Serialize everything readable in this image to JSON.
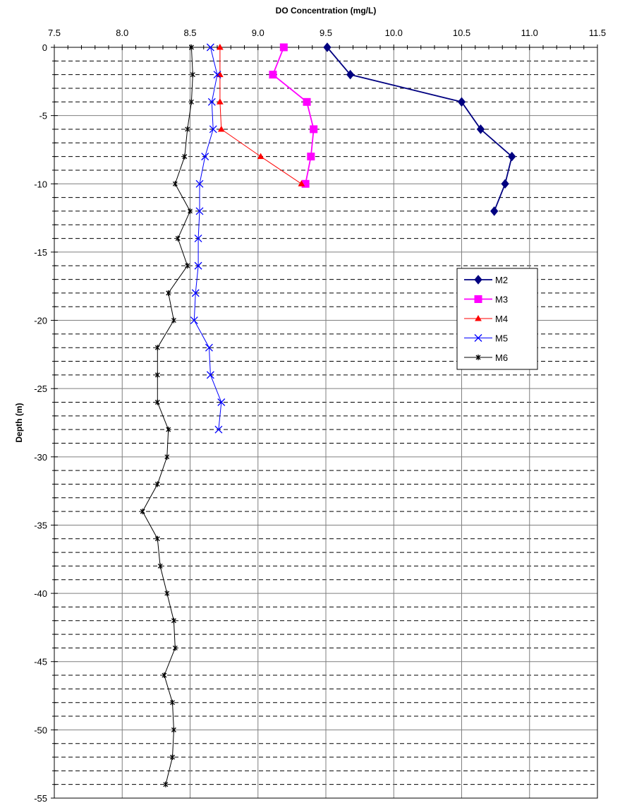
{
  "chart_data": {
    "type": "line",
    "title": "",
    "xlabel": "DO Concentration (mg/L)",
    "ylabel": "Depth (m)",
    "xlim": [
      7.5,
      11.5
    ],
    "ylim": [
      -55,
      0
    ],
    "x_ticks": [
      "7.5",
      "8.0",
      "8.5",
      "9.0",
      "9.5",
      "10.0",
      "10.5",
      "11.0",
      "11.5"
    ],
    "y_ticks": [
      "0",
      "-5",
      "-10",
      "-15",
      "-20",
      "-25",
      "-30",
      "-35",
      "-40",
      "-45",
      "-50",
      "-55"
    ],
    "x_axis_position": "top",
    "grid": "solid major gridlines every 5 m and 0.5 mg/L; dashed minor gridlines every 1 m",
    "legend_position": "right",
    "series": [
      {
        "name": "M2",
        "color": "#000080",
        "marker": "diamond",
        "points": [
          [
            9.51,
            0
          ],
          [
            9.68,
            -2
          ],
          [
            10.5,
            -4
          ],
          [
            10.64,
            -6
          ],
          [
            10.87,
            -8
          ],
          [
            10.82,
            -10
          ],
          [
            10.74,
            -12
          ]
        ]
      },
      {
        "name": "M3",
        "color": "#ff00ff",
        "marker": "square",
        "points": [
          [
            9.19,
            0
          ],
          [
            9.11,
            -2
          ],
          [
            9.36,
            -4
          ],
          [
            9.41,
            -6
          ],
          [
            9.39,
            -8
          ],
          [
            9.35,
            -10
          ]
        ]
      },
      {
        "name": "M4",
        "color": "#ff0000",
        "marker": "triangle",
        "points": [
          [
            8.72,
            0
          ],
          [
            8.72,
            -2
          ],
          [
            8.72,
            -4
          ],
          [
            8.73,
            -6
          ],
          [
            9.02,
            -8
          ],
          [
            9.32,
            -10
          ]
        ]
      },
      {
        "name": "M5",
        "color": "#0000ff",
        "marker": "x",
        "points": [
          [
            8.65,
            0
          ],
          [
            8.7,
            -2
          ],
          [
            8.66,
            -4
          ],
          [
            8.67,
            -6
          ],
          [
            8.61,
            -8
          ],
          [
            8.57,
            -10
          ],
          [
            8.57,
            -12
          ],
          [
            8.56,
            -14
          ],
          [
            8.56,
            -16
          ],
          [
            8.54,
            -18
          ],
          [
            8.53,
            -20
          ],
          [
            8.64,
            -22
          ],
          [
            8.65,
            -24
          ],
          [
            8.73,
            -26
          ],
          [
            8.71,
            -28
          ]
        ]
      },
      {
        "name": "M6",
        "color": "#000000",
        "marker": "star",
        "points": [
          [
            8.51,
            0
          ],
          [
            8.52,
            -2
          ],
          [
            8.51,
            -4
          ],
          [
            8.48,
            -6
          ],
          [
            8.46,
            -8
          ],
          [
            8.39,
            -10
          ],
          [
            8.5,
            -12
          ],
          [
            8.41,
            -14
          ],
          [
            8.48,
            -16
          ],
          [
            8.34,
            -18
          ],
          [
            8.38,
            -20
          ],
          [
            8.26,
            -22
          ],
          [
            8.26,
            -24
          ],
          [
            8.26,
            -26
          ],
          [
            8.34,
            -28
          ],
          [
            8.33,
            -30
          ],
          [
            8.26,
            -32
          ],
          [
            8.15,
            -34
          ],
          [
            8.26,
            -36
          ],
          [
            8.28,
            -38
          ],
          [
            8.33,
            -40
          ],
          [
            8.38,
            -42
          ],
          [
            8.39,
            -44
          ],
          [
            8.31,
            -46
          ],
          [
            8.37,
            -48
          ],
          [
            8.38,
            -50
          ],
          [
            8.37,
            -52
          ],
          [
            8.32,
            -54
          ]
        ]
      }
    ]
  }
}
